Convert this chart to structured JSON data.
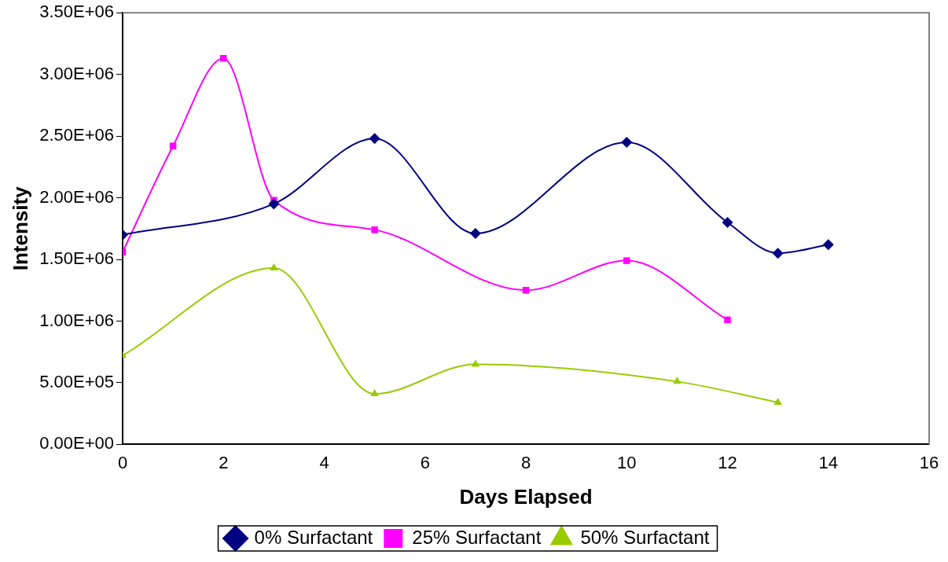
{
  "chart_data": {
    "type": "line",
    "xlabel": "Days Elapsed",
    "ylabel": "Intensity",
    "xlim": [
      0,
      16
    ],
    "xticks": [
      0,
      2,
      4,
      6,
      8,
      10,
      12,
      14,
      16
    ],
    "ylim": [
      0,
      3500000
    ],
    "yticks": [
      {
        "value": 0,
        "label": "0.00E+00"
      },
      {
        "value": 500000,
        "label": "5.00E+05"
      },
      {
        "value": 1000000,
        "label": "1.00E+06"
      },
      {
        "value": 1500000,
        "label": "1.50E+06"
      },
      {
        "value": 2000000,
        "label": "2.00E+06"
      },
      {
        "value": 2500000,
        "label": "2.50E+06"
      },
      {
        "value": 3000000,
        "label": "3.00E+06"
      },
      {
        "value": 3500000,
        "label": "3.50E+06"
      }
    ],
    "grid": false,
    "legend": "bottom",
    "series": [
      {
        "name": "0% Surfactant",
        "color": "#000080",
        "marker": "diamond",
        "x": [
          0,
          3,
          5,
          7,
          10,
          12,
          13,
          14
        ],
        "values": [
          1700000,
          1950000,
          2480000,
          1710000,
          2450000,
          1800000,
          1550000,
          1620000
        ]
      },
      {
        "name": "25% Surfactant",
        "color": "#ff00ff",
        "marker": "square",
        "x": [
          0,
          1,
          2,
          3,
          5,
          8,
          10,
          12
        ],
        "values": [
          1560000,
          2420000,
          3130000,
          1980000,
          1740000,
          1250000,
          1490000,
          1010000
        ]
      },
      {
        "name": "50% Surfactant",
        "color": "#99cc00",
        "marker": "triangle",
        "x": [
          0,
          3,
          5,
          7,
          11,
          13
        ],
        "values": [
          720000,
          1430000,
          410000,
          650000,
          510000,
          340000
        ]
      }
    ]
  }
}
